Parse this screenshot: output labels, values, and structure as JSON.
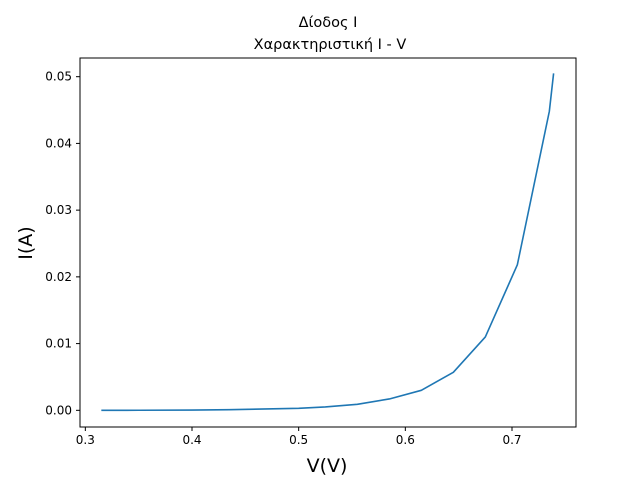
{
  "chart_data": {
    "type": "line",
    "title": "Δίοδος I",
    "subtitle": "Χαρακτηριστική I - V",
    "xlabel": "V(V)",
    "ylabel": "I(A)",
    "xlim": [
      0.295,
      0.76
    ],
    "ylim": [
      -0.0025,
      0.0528
    ],
    "xticks": [
      0.3,
      0.4,
      0.5,
      0.6,
      0.7
    ],
    "xtick_labels": [
      "0.3",
      "0.4",
      "0.5",
      "0.6",
      "0.7"
    ],
    "yticks": [
      0.0,
      0.01,
      0.02,
      0.03,
      0.04,
      0.05
    ],
    "ytick_labels": [
      "0.00",
      "0.01",
      "0.02",
      "0.03",
      "0.04",
      "0.05"
    ],
    "grid": false,
    "series": [
      {
        "color": "#1f77b4",
        "x": [
          0.315,
          0.35,
          0.4,
          0.435,
          0.47,
          0.5,
          0.525,
          0.555,
          0.585,
          0.615,
          0.645,
          0.675,
          0.705,
          0.735,
          0.739
        ],
        "y": [
          0.0,
          1e-05,
          4e-05,
          0.0001,
          0.0002,
          0.0003,
          0.0005,
          0.0009,
          0.0017,
          0.003,
          0.0057,
          0.011,
          0.0218,
          0.0448,
          0.0505
        ]
      }
    ]
  }
}
